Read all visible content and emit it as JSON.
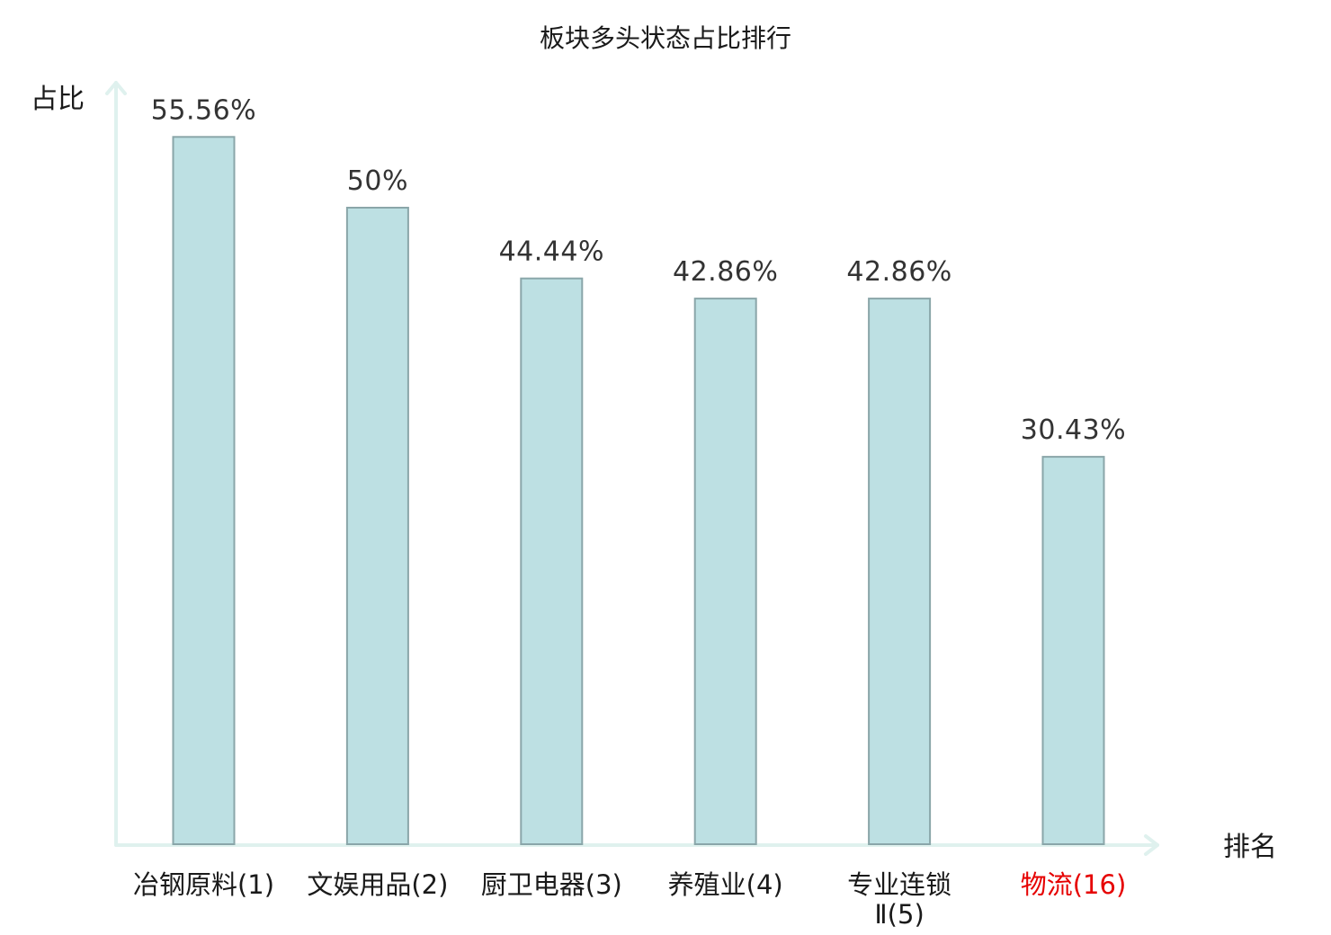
{
  "chart_data": {
    "type": "bar",
    "title": "板块多头状态占比排行",
    "xlabel": "排名",
    "ylabel": "占比",
    "categories": [
      {
        "name": "冶钢原料",
        "rank": "(1)",
        "highlight": false
      },
      {
        "name": "文娱用品",
        "rank": "(2)",
        "highlight": false
      },
      {
        "name": "厨卫电器",
        "rank": "(3)",
        "highlight": false
      },
      {
        "name": "养殖业",
        "rank": "(4)",
        "highlight": false
      },
      {
        "name": "专业连锁",
        "rank": "Ⅱ(5)",
        "highlight": false,
        "wrap": true
      },
      {
        "name": "物流",
        "rank": "(16)",
        "highlight": true
      }
    ],
    "values": [
      55.56,
      50,
      44.44,
      42.86,
      42.86,
      30.43
    ],
    "value_labels": [
      "55.56%",
      "50%",
      "44.44%",
      "42.86%",
      "42.86%",
      "30.43%"
    ],
    "unit": "%",
    "ylim": [
      0,
      60
    ],
    "grid": false,
    "legend": "none",
    "colors": {
      "bar_fill": "#bde0e3",
      "bar_stroke": "#8aa6a9",
      "axis": "#dff1ee",
      "text": "#1a1a1a",
      "value_text": "#333333",
      "highlight_text": "#e60000"
    }
  }
}
